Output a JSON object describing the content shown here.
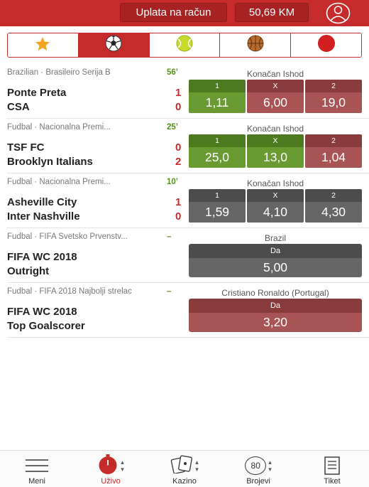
{
  "header": {
    "deposit_label": "Uplata na račun",
    "balance": "50,69 KM",
    "brand_color": "#c62b2b"
  },
  "tabs": [
    {
      "icon": "star-icon",
      "active": false
    },
    {
      "icon": "soccer-ball-icon",
      "active": true
    },
    {
      "icon": "tennis-ball-icon",
      "active": false
    },
    {
      "icon": "basketball-icon",
      "active": false
    },
    {
      "icon": "red-dot-icon",
      "active": false
    }
  ],
  "events": [
    {
      "league": "Brazilian · Brasileiro Serija B",
      "time": "56’",
      "team1": "Ponte Preta",
      "score1": "1",
      "team2": "CSA",
      "score2": "0",
      "market": "Konačan Ishod",
      "odds": [
        {
          "label": "1",
          "value": "1,11",
          "tone": "green"
        },
        {
          "label": "X",
          "value": "6,00",
          "tone": "red"
        },
        {
          "label": "2",
          "value": "19,0",
          "tone": "red"
        }
      ]
    },
    {
      "league": "Fudbal · Nacionalna Premi...",
      "time": "25’",
      "team1": "TSF FC",
      "score1": "0",
      "team2": "Brooklyn Italians",
      "score2": "2",
      "market": "Konačan Ishod",
      "odds": [
        {
          "label": "1",
          "value": "25,0",
          "tone": "green"
        },
        {
          "label": "X",
          "value": "13,0",
          "tone": "green"
        },
        {
          "label": "2",
          "value": "1,04",
          "tone": "red"
        }
      ]
    },
    {
      "league": "Fudbal · Nacionalna Premi...",
      "time": "10’",
      "team1": "Asheville City",
      "score1": "1",
      "team2": "Inter Nashville",
      "score2": "0",
      "market": "Konačan Ishod",
      "odds": [
        {
          "label": "1",
          "value": "1,59",
          "tone": "gray"
        },
        {
          "label": "X",
          "value": "4,10",
          "tone": "gray"
        },
        {
          "label": "2",
          "value": "4,30",
          "tone": "gray"
        }
      ]
    },
    {
      "league": "Fudbal · FIFA Svetsko Prvenstv...",
      "time": "–",
      "team1": "FIFA WC 2018",
      "team2": "Outright",
      "market": "Brazil",
      "single": {
        "label": "Da",
        "value": "5,00",
        "tone": "gray"
      }
    },
    {
      "league": "Fudbal · FIFA 2018 Najbolji strelac",
      "time": "–",
      "team1": "FIFA WC 2018",
      "team2": "Top Goalscorer",
      "market": "Cristiano Ronaldo (Portugal)",
      "single": {
        "label": "Da",
        "value": "3,20",
        "tone": "red"
      }
    }
  ],
  "nav": {
    "menu": "Meni",
    "live": "Uživo",
    "casino": "Kazino",
    "numbers": "Brojevi",
    "numbers_badge": "80",
    "ticket": "Tiket"
  }
}
